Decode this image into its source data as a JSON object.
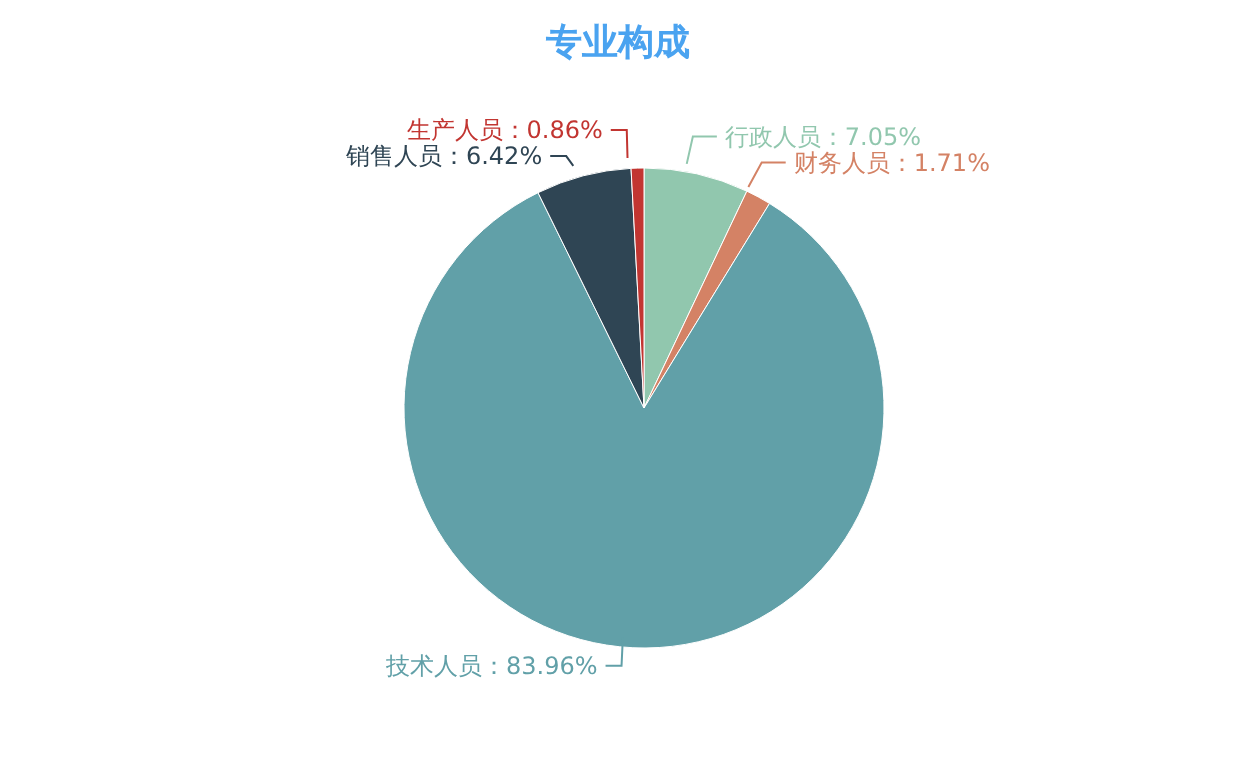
{
  "chart_data": {
    "type": "pie",
    "title": "专业构成",
    "categories": [
      "行政人员",
      "财务人员",
      "技术人员",
      "销售人员",
      "生产人员"
    ],
    "values": [
      7.05,
      1.71,
      83.96,
      6.42,
      0.86
    ],
    "colors": [
      "#91c7ae",
      "#d48265",
      "#61a0a8",
      "#2f4554",
      "#c23531"
    ],
    "value_labels": [
      "：7.05%",
      "：1.71%",
      "：83.96%",
      "：6.42%",
      "：0.86%"
    ]
  }
}
